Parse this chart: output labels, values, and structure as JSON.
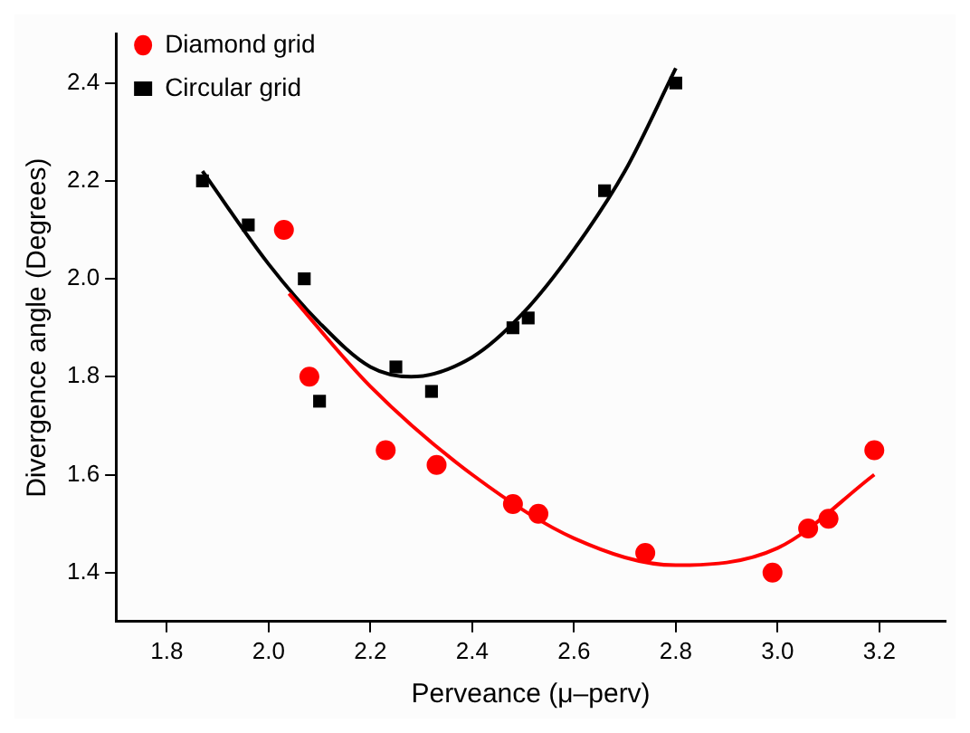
{
  "chart_data": {
    "type": "scatter",
    "xlabel": "Perveance (μ–perv)",
    "ylabel": "Divergence angle (Degrees)",
    "xlim": [
      1.7,
      3.33
    ],
    "ylim": [
      1.3,
      2.5
    ],
    "xticks": [
      1.8,
      {
        "value": 2.0,
        "label": "2.0"
      },
      2.2,
      2.4,
      2.6,
      2.8,
      {
        "value": 3.0,
        "label": "3.0"
      },
      3.2
    ],
    "yticks": [
      1.4,
      1.6,
      1.8,
      {
        "value": 2.0,
        "label": "2.0"
      },
      2.2,
      2.4
    ],
    "grid": false,
    "legend": "top left",
    "series": [
      {
        "name": "Diamond grid",
        "type": "scatter",
        "marker": "circle",
        "color": "#ff0000",
        "x": [
          2.03,
          2.08,
          2.23,
          2.33,
          2.48,
          2.53,
          2.74,
          2.99,
          3.06,
          3.1,
          3.19
        ],
        "values": [
          2.1,
          1.8,
          1.65,
          1.62,
          1.54,
          1.52,
          1.44,
          1.4,
          1.49,
          1.51,
          1.65
        ]
      },
      {
        "name": "Circular grid",
        "type": "scatter",
        "marker": "square",
        "color": "#000000",
        "x": [
          1.87,
          1.96,
          2.07,
          2.1,
          2.25,
          2.32,
          2.48,
          2.51,
          2.66,
          2.8
        ],
        "values": [
          2.2,
          2.11,
          2.0,
          1.75,
          1.82,
          1.77,
          1.9,
          1.92,
          2.18,
          2.4
        ]
      },
      {
        "type": "line",
        "marker": "none",
        "color": "#ff0000",
        "x": [
          2.04,
          2.2,
          2.4,
          2.6,
          2.8,
          3.0,
          3.19
        ],
        "values": [
          1.97,
          1.78,
          1.6,
          1.47,
          1.415,
          1.45,
          1.6
        ]
      },
      {
        "type": "line",
        "marker": "none",
        "color": "#000000",
        "x": [
          1.87,
          2.0,
          2.1,
          2.2,
          2.28,
          2.4,
          2.5,
          2.6,
          2.7,
          2.8
        ],
        "values": [
          2.22,
          2.03,
          1.91,
          1.82,
          1.8,
          1.84,
          1.93,
          2.06,
          2.22,
          2.43
        ]
      }
    ]
  }
}
